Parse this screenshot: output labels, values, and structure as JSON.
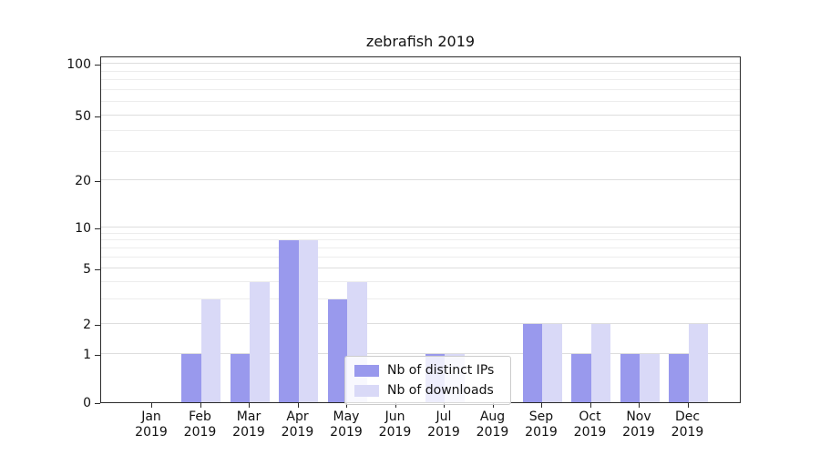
{
  "chart_data": {
    "type": "bar",
    "title": "zebrafish 2019",
    "categories": [
      "Jan",
      "Feb",
      "Mar",
      "Apr",
      "May",
      "Jun",
      "Jul",
      "Aug",
      "Sep",
      "Oct",
      "Nov",
      "Dec"
    ],
    "x_year_label": "2019",
    "series": [
      {
        "name": "Nb of distinct IPs",
        "color": "#9999ed",
        "values": [
          0,
          1,
          1,
          8,
          3,
          0,
          1,
          0,
          2,
          1,
          1,
          1
        ]
      },
      {
        "name": "Nb of downloads",
        "color": "#d9d9f7",
        "values": [
          0,
          3,
          4,
          8,
          4,
          0,
          1,
          0,
          2,
          2,
          1,
          2
        ]
      }
    ],
    "yticks": [
      0,
      1,
      2,
      5,
      10,
      20,
      50,
      100
    ],
    "yscale": "symlog",
    "ylim": [
      0,
      100
    ],
    "grid": "horizontal",
    "legend_position": "lower center"
  }
}
